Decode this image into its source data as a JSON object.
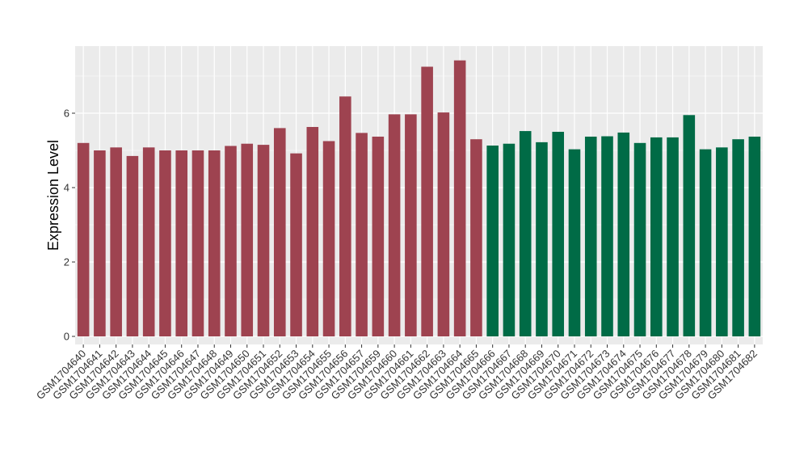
{
  "chart_data": {
    "type": "bar",
    "xlabel": "",
    "ylabel": "Expression Level",
    "ylim": [
      0,
      7.7
    ],
    "yticks": [
      0,
      2,
      4,
      6
    ],
    "grid": true,
    "colors": {
      "group1": "#9e4350",
      "group2": "#006b46",
      "panel": "#ebebeb",
      "gridline": "#ffffff"
    },
    "series": [
      {
        "categories": [
          "GSM1704640",
          "GSM1704641",
          "GSM1704642",
          "GSM1704643",
          "GSM1704644",
          "GSM1704645",
          "GSM1704646",
          "GSM1704647",
          "GSM1704648",
          "GSM1704649",
          "GSM1704650",
          "GSM1704651",
          "GSM1704652",
          "GSM1704653",
          "GSM1704654",
          "GSM1704655",
          "GSM1704656",
          "GSM1704657",
          "GSM1704659",
          "GSM1704660",
          "GSM1704661",
          "GSM1704662",
          "GSM1704663",
          "GSM1704664",
          "GSM1704665"
        ],
        "values": [
          5.2,
          5.0,
          5.08,
          4.85,
          5.08,
          5.0,
          5.0,
          5.0,
          5.0,
          5.12,
          5.18,
          5.15,
          5.6,
          4.92,
          5.63,
          5.25,
          6.45,
          5.47,
          5.37,
          5.97,
          5.97,
          7.25,
          6.02,
          7.42,
          5.3
        ],
        "color": "#9e4350"
      },
      {
        "categories": [
          "GSM1704666",
          "GSM1704667",
          "GSM1704668",
          "GSM1704669",
          "GSM1704670",
          "GSM1704671",
          "GSM1704672",
          "GSM1704673",
          "GSM1704674",
          "GSM1704675",
          "GSM1704676",
          "GSM1704677",
          "GSM1704678",
          "GSM1704679",
          "GSM1704680",
          "GSM1704681",
          "GSM1704682"
        ],
        "values": [
          5.13,
          5.18,
          5.52,
          5.22,
          5.5,
          5.03,
          5.37,
          5.38,
          5.48,
          5.2,
          5.35,
          5.35,
          5.95,
          5.03,
          5.08,
          5.3,
          5.37
        ],
        "color": "#006b46"
      }
    ]
  }
}
